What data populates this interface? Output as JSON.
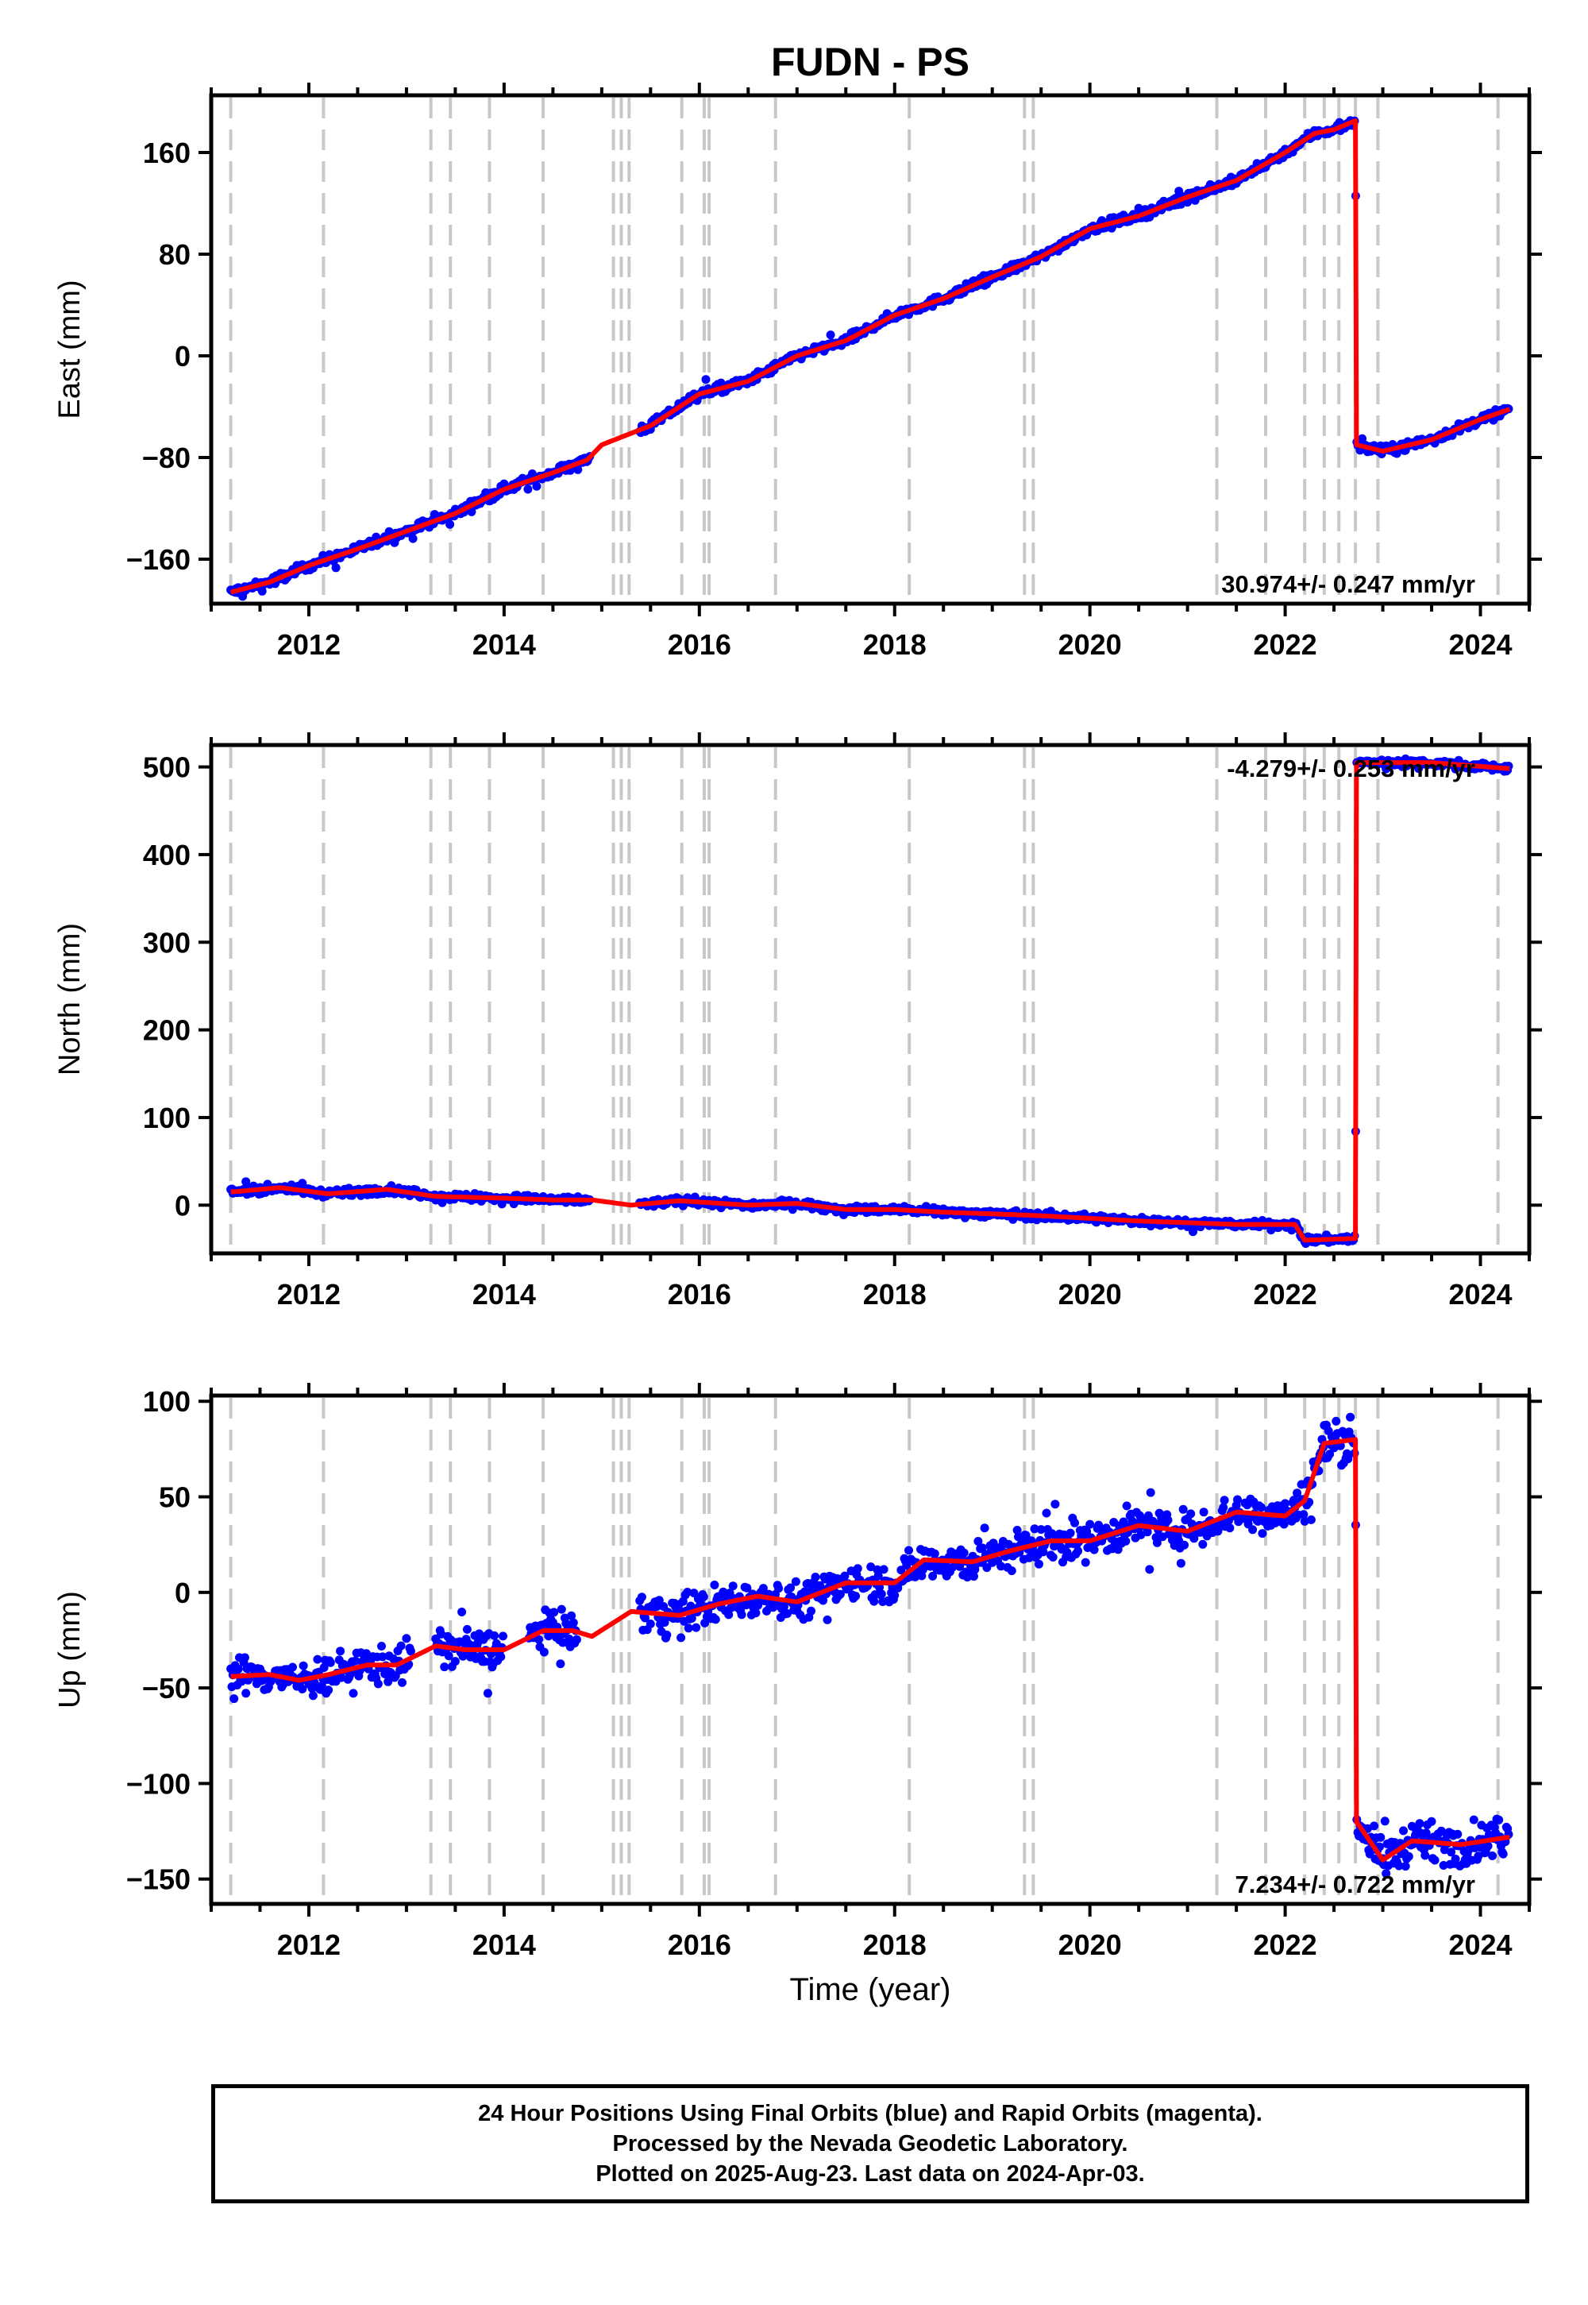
{
  "chart_data": {
    "type": "scatter",
    "title": "FUDN - PS",
    "xlabel": "Time (year)",
    "xlim": [
      2011.0,
      2024.5
    ],
    "xticks": [
      2012,
      2014,
      2016,
      2018,
      2020,
      2022,
      2024
    ],
    "equipment_change_lines": [
      2011.2,
      2012.15,
      2013.25,
      2013.45,
      2013.85,
      2014.4,
      2015.12,
      2015.2,
      2015.28,
      2015.82,
      2016.05,
      2016.1,
      2016.78,
      2018.15,
      2019.33,
      2019.42,
      2021.3,
      2021.8,
      2022.2,
      2022.4,
      2022.55,
      2022.72,
      2022.95,
      2024.18
    ],
    "series_colors": {
      "points": "#0000ff",
      "model": "#ff0000",
      "breaks": "#c8c8c8"
    },
    "panels": [
      {
        "id": "east",
        "ylabel": "East (mm)",
        "ylim": [
          -195,
          205
        ],
        "yticks": [
          -160,
          -80,
          0,
          80,
          160
        ],
        "rate_label": "30.974+/- 0.247 mm/yr",
        "rate_position": "bottom-right",
        "noise": 2.5,
        "model": [
          [
            2011.2,
            -186
          ],
          [
            2011.6,
            -178
          ],
          [
            2012.0,
            -165
          ],
          [
            2012.5,
            -152
          ],
          [
            2013.0,
            -138
          ],
          [
            2013.5,
            -124
          ],
          [
            2014.0,
            -105
          ],
          [
            2014.5,
            -92
          ],
          [
            2014.85,
            -82
          ],
          [
            2015.0,
            -70
          ],
          [
            2015.5,
            -55
          ],
          [
            2016.0,
            -30
          ],
          [
            2016.5,
            -20
          ],
          [
            2017.0,
            0
          ],
          [
            2017.5,
            12
          ],
          [
            2018.0,
            32
          ],
          [
            2018.5,
            45
          ],
          [
            2019.0,
            62
          ],
          [
            2019.5,
            78
          ],
          [
            2020.0,
            100
          ],
          [
            2020.5,
            110
          ],
          [
            2021.0,
            125
          ],
          [
            2021.5,
            138
          ],
          [
            2022.0,
            160
          ],
          [
            2022.3,
            175
          ],
          [
            2022.5,
            178
          ],
          [
            2022.72,
            185
          ],
          [
            2022.73,
            -70
          ],
          [
            2023.0,
            -75
          ],
          [
            2023.5,
            -66
          ],
          [
            2024.0,
            -50
          ],
          [
            2024.3,
            -42
          ]
        ],
        "gaps": [
          [
            2014.88,
            2015.38
          ]
        ]
      },
      {
        "id": "north",
        "ylabel": "North (mm)",
        "ylim": [
          -55,
          525
        ],
        "yticks": [
          0,
          100,
          200,
          300,
          400,
          500
        ],
        "rate_label": "-4.279+/- 0.253 mm/yr",
        "rate_position": "top-right",
        "noise": 3,
        "model": [
          [
            2011.2,
            15
          ],
          [
            2011.7,
            20
          ],
          [
            2012.2,
            13
          ],
          [
            2012.8,
            18
          ],
          [
            2013.3,
            10
          ],
          [
            2014.0,
            8
          ],
          [
            2014.5,
            6
          ],
          [
            2014.9,
            6
          ],
          [
            2015.3,
            0
          ],
          [
            2015.8,
            5
          ],
          [
            2016.5,
            0
          ],
          [
            2017.0,
            2
          ],
          [
            2017.5,
            -5
          ],
          [
            2018.0,
            -5
          ],
          [
            2018.5,
            -8
          ],
          [
            2019.0,
            -10
          ],
          [
            2019.5,
            -12
          ],
          [
            2020.0,
            -15
          ],
          [
            2020.5,
            -18
          ],
          [
            2021.0,
            -20
          ],
          [
            2021.5,
            -22
          ],
          [
            2022.1,
            -22
          ],
          [
            2022.2,
            -40
          ],
          [
            2022.72,
            -38
          ],
          [
            2022.73,
            505
          ],
          [
            2023.5,
            505
          ],
          [
            2024.3,
            498
          ]
        ],
        "gaps": [
          [
            2014.88,
            2015.38
          ]
        ]
      },
      {
        "id": "up",
        "ylabel": "Up (mm)",
        "ylim": [
          -163,
          103
        ],
        "yticks": [
          -150,
          -100,
          -50,
          0,
          50,
          100
        ],
        "rate_label": "7.234+/- 0.722 mm/yr",
        "rate_position": "bottom-right",
        "noise": 7,
        "model": [
          [
            2011.2,
            -44
          ],
          [
            2011.6,
            -43
          ],
          [
            2011.9,
            -46
          ],
          [
            2012.2,
            -43
          ],
          [
            2012.6,
            -38
          ],
          [
            2012.9,
            -38
          ],
          [
            2013.3,
            -28
          ],
          [
            2013.6,
            -30
          ],
          [
            2014.0,
            -30
          ],
          [
            2014.4,
            -20
          ],
          [
            2014.7,
            -20
          ],
          [
            2014.9,
            -23
          ],
          [
            2015.3,
            -10
          ],
          [
            2015.8,
            -12
          ],
          [
            2016.2,
            -6
          ],
          [
            2016.6,
            -2
          ],
          [
            2017.0,
            -5
          ],
          [
            2017.5,
            5
          ],
          [
            2018.0,
            5
          ],
          [
            2018.3,
            17
          ],
          [
            2018.8,
            16
          ],
          [
            2019.2,
            22
          ],
          [
            2019.6,
            27
          ],
          [
            2020.0,
            27
          ],
          [
            2020.5,
            35
          ],
          [
            2021.0,
            32
          ],
          [
            2021.5,
            42
          ],
          [
            2022.0,
            40
          ],
          [
            2022.2,
            48
          ],
          [
            2022.4,
            78
          ],
          [
            2022.72,
            80
          ],
          [
            2022.73,
            -120
          ],
          [
            2023.0,
            -140
          ],
          [
            2023.3,
            -130
          ],
          [
            2023.8,
            -132
          ],
          [
            2024.3,
            -128
          ]
        ],
        "gaps": [
          [
            2013.05,
            2013.3
          ],
          [
            2014.0,
            2014.25
          ],
          [
            2014.75,
            2015.38
          ]
        ]
      }
    ]
  },
  "footer": {
    "line1": "24 Hour Positions Using Final Orbits (blue) and Rapid Orbits (magenta).",
    "line2": "Processed by the Nevada Geodetic Laboratory.",
    "line3": "Plotted on 2025-Aug-23. Last data on 2024-Apr-03."
  }
}
